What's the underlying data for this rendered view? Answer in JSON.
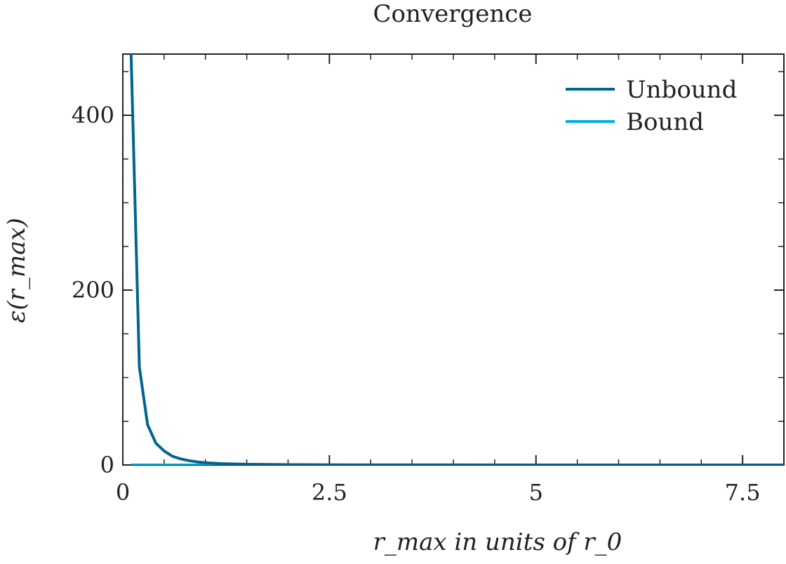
{
  "chart_data": {
    "type": "line",
    "title": "Convergence",
    "xlabel": "r_max in units of r_0",
    "ylabel": "ε(r_max)",
    "xlim": [
      0,
      8
    ],
    "ylim": [
      0,
      470
    ],
    "xticks": [
      0,
      2.5,
      5,
      7.5
    ],
    "xtick_labels": [
      "0",
      "2.5",
      "5",
      "7.5"
    ],
    "yticks": [
      0,
      200,
      400
    ],
    "ytick_labels": [
      "0",
      "200",
      "400"
    ],
    "grid": false,
    "legend_position": "top-right",
    "series": [
      {
        "name": "Unbound",
        "color": "#006591",
        "x": [
          0.1,
          0.2,
          0.3,
          0.4,
          0.5,
          0.6,
          0.7,
          0.8,
          0.9,
          1.0,
          1.2,
          1.5,
          2.0,
          2.5,
          3.0,
          4.0,
          5.0,
          6.0,
          7.0,
          8.0
        ],
        "y": [
          470,
          112,
          46,
          25,
          16,
          10,
          7,
          5,
          3.5,
          2.5,
          1.5,
          0.8,
          0.4,
          0.2,
          0.1,
          0.05,
          0.02,
          0.01,
          0.01,
          0.01
        ]
      },
      {
        "name": "Bound",
        "color": "#00aee6",
        "x": [
          0.1,
          1,
          2,
          3,
          4,
          5,
          6,
          7,
          8
        ],
        "y": [
          0,
          0,
          0,
          0,
          0,
          0,
          0,
          0,
          0
        ]
      }
    ]
  }
}
